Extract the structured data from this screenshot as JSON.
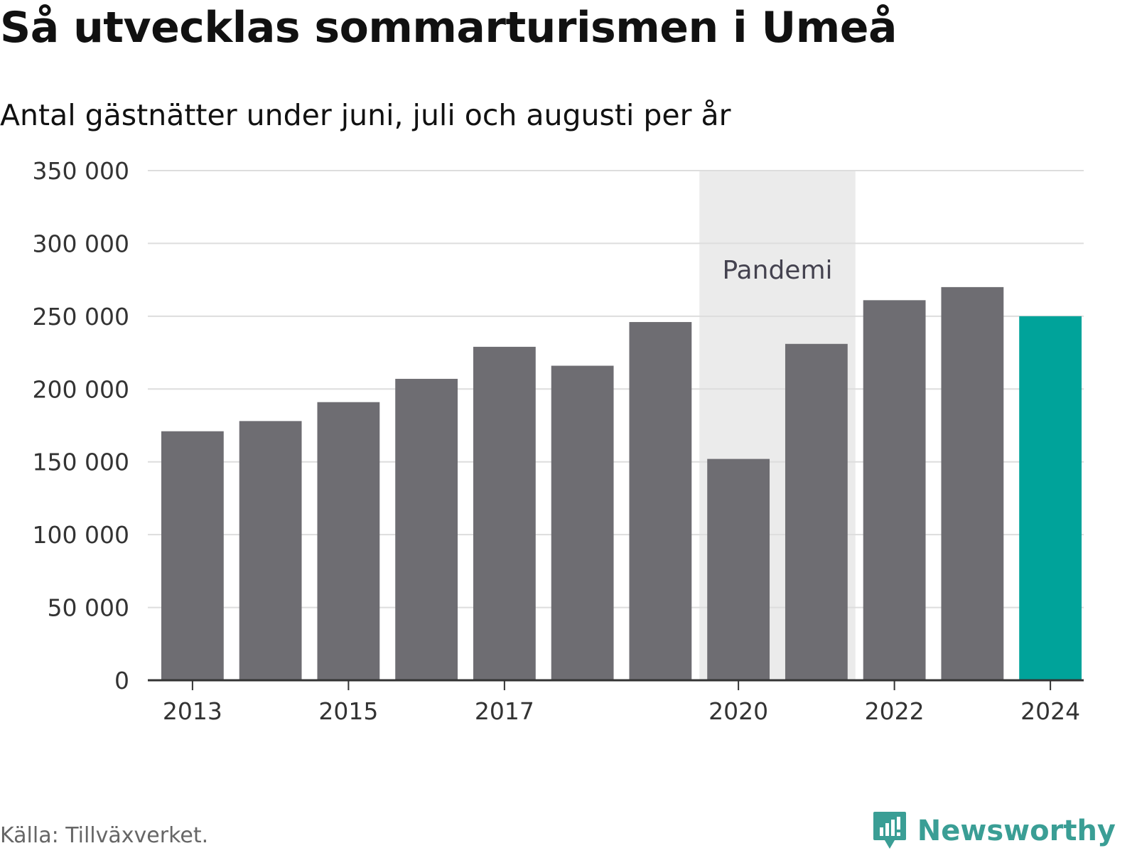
{
  "title": "Så utvecklas sommarturismen i Umeå",
  "subtitle": "Antal gästnätter under juni, juli och augusti per år",
  "source": "Källa: Tillväxverket.",
  "brand": {
    "name": "Newsworthy",
    "icon": "newsworthy-logo-icon",
    "color": "#3a9e95"
  },
  "chart_data": {
    "type": "bar",
    "categories": [
      "2013",
      "2014",
      "2015",
      "2016",
      "2017",
      "2018",
      "2019",
      "2020",
      "2021",
      "2022",
      "2023",
      "2024"
    ],
    "values": [
      171000,
      178000,
      191000,
      207000,
      229000,
      216000,
      246000,
      152000,
      231000,
      261000,
      270000,
      250000
    ],
    "x_tick_labels": [
      "2013",
      "2015",
      "2017",
      "2020",
      "2022",
      "2024"
    ],
    "y_ticks": [
      0,
      50000,
      100000,
      150000,
      200000,
      250000,
      300000,
      350000
    ],
    "y_tick_labels": [
      "0",
      "50 000",
      "100 000",
      "150 000",
      "200 000",
      "250 000",
      "300 000",
      "350 000"
    ],
    "ylim": [
      0,
      350000
    ],
    "grid": true,
    "bar_color": "#6e6d72",
    "highlight": {
      "category": "2024",
      "color": "#00a39a"
    },
    "annotation": {
      "label": "Pandemi",
      "from": "2020",
      "to": "2021",
      "color": "#ebebeb"
    }
  }
}
